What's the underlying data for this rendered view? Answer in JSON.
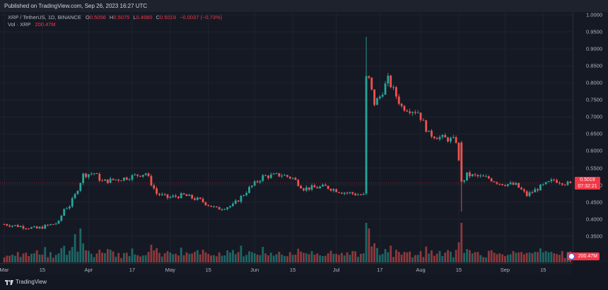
{
  "header": {
    "published": "Published on TradingView.com, Sep 26, 2023 16:27 UTC"
  },
  "legend": {
    "symbol": "XRP / TetherUS, 1D, BINANCE",
    "o_label": "O",
    "o": "0.5056",
    "h_label": "H",
    "h": "0.5075",
    "l_label": "L",
    "l": "0.4980",
    "c_label": "C",
    "c": "0.5019",
    "change": "−0.0037 (−0.73%)",
    "vol_label": "Vol · XRP",
    "vol": "200.47M"
  },
  "price_badge": {
    "price": "0.5019",
    "countdown": "07:32:21"
  },
  "volume_badge": {
    "value": "200.47M"
  },
  "footer": {
    "brand": "TradingView"
  },
  "colors": {
    "up": "#26a69a",
    "down": "#ef5350",
    "background": "#131722",
    "text": "#b2b5be"
  },
  "chart_data": {
    "type": "candlestick",
    "title": "XRP / TetherUS, 1D, BINANCE",
    "ylim": [
      0.335,
      1.0
    ],
    "y_ticks": [
      "1.0000",
      "0.9500",
      "0.9000",
      "0.8500",
      "0.8000",
      "0.7500",
      "0.7000",
      "0.6500",
      "0.6000",
      "0.5500",
      "0.5000",
      "0.4500",
      "0.4000",
      "0.3500"
    ],
    "x_ticks": [
      {
        "label": "Mar",
        "day": 0
      },
      {
        "label": "15",
        "day": 14
      },
      {
        "label": "Apr",
        "day": 31
      },
      {
        "label": "17",
        "day": 47
      },
      {
        "label": "May",
        "day": 61
      },
      {
        "label": "15",
        "day": 75
      },
      {
        "label": "Jun",
        "day": 92
      },
      {
        "label": "15",
        "day": 106
      },
      {
        "label": "Jul",
        "day": 122
      },
      {
        "label": "17",
        "day": 138
      },
      {
        "label": "Aug",
        "day": 153
      },
      {
        "label": "15",
        "day": 167
      },
      {
        "label": "Sep",
        "day": 184
      },
      {
        "label": "15",
        "day": 198
      }
    ],
    "last_day": 208,
    "anchors": [
      {
        "day": 0,
        "price": 0.385
      },
      {
        "day": 12,
        "price": 0.372
      },
      {
        "day": 20,
        "price": 0.39
      },
      {
        "day": 22,
        "price": 0.43
      },
      {
        "day": 24,
        "price": 0.44
      },
      {
        "day": 26,
        "price": 0.47
      },
      {
        "day": 29,
        "price": 0.53
      },
      {
        "day": 33,
        "price": 0.535
      },
      {
        "day": 36,
        "price": 0.51
      },
      {
        "day": 44,
        "price": 0.52
      },
      {
        "day": 52,
        "price": 0.535
      },
      {
        "day": 56,
        "price": 0.475
      },
      {
        "day": 60,
        "price": 0.463
      },
      {
        "day": 66,
        "price": 0.47
      },
      {
        "day": 72,
        "price": 0.455
      },
      {
        "day": 78,
        "price": 0.43
      },
      {
        "day": 84,
        "price": 0.44
      },
      {
        "day": 90,
        "price": 0.49
      },
      {
        "day": 95,
        "price": 0.525
      },
      {
        "day": 102,
        "price": 0.53
      },
      {
        "day": 106,
        "price": 0.52
      },
      {
        "day": 110,
        "price": 0.49
      },
      {
        "day": 118,
        "price": 0.495
      },
      {
        "day": 124,
        "price": 0.48
      },
      {
        "day": 132,
        "price": 0.47
      },
      {
        "day": 133,
        "price": 0.475
      },
      {
        "day": 134,
        "price": 0.81
      },
      {
        "day": 136,
        "price": 0.74
      },
      {
        "day": 138,
        "price": 0.76
      },
      {
        "day": 141,
        "price": 0.81
      },
      {
        "day": 146,
        "price": 0.73
      },
      {
        "day": 152,
        "price": 0.715
      },
      {
        "day": 156,
        "price": 0.65
      },
      {
        "day": 160,
        "price": 0.64
      },
      {
        "day": 166,
        "price": 0.63
      },
      {
        "day": 168,
        "price": 0.505
      },
      {
        "day": 170,
        "price": 0.53
      },
      {
        "day": 178,
        "price": 0.52
      },
      {
        "day": 182,
        "price": 0.505
      },
      {
        "day": 188,
        "price": 0.5
      },
      {
        "day": 192,
        "price": 0.47
      },
      {
        "day": 196,
        "price": 0.49
      },
      {
        "day": 202,
        "price": 0.515
      },
      {
        "day": 208,
        "price": 0.502
      }
    ],
    "special_candles": [
      {
        "day": 133,
        "open": 0.475,
        "high": 0.935,
        "low": 0.47,
        "close": 0.82
      },
      {
        "day": 168,
        "open": 0.625,
        "high": 0.63,
        "low": 0.422,
        "close": 0.51
      }
    ],
    "volume": {
      "label": "Vol · XRP",
      "last": "200.47M"
    }
  }
}
